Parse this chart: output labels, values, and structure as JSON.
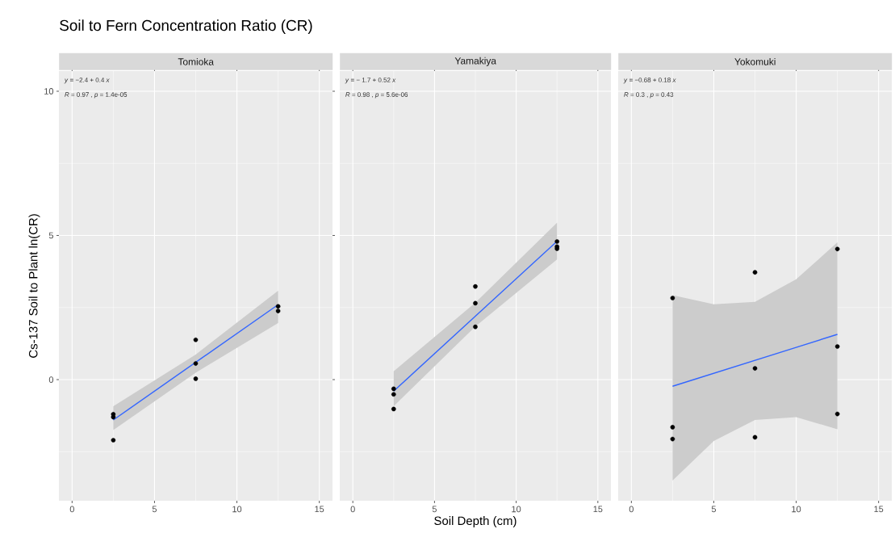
{
  "chart_data": [
    {
      "type": "scatter",
      "title": "Soil to Fern Concentration Ratio (CR)",
      "subtitle": "Tomioka",
      "ylabel": "Cs-137 Soil to Plant ln(CR)",
      "xlim": [
        -0.8,
        15.8
      ],
      "ylim": [
        -4.2,
        10.7
      ],
      "xticks": [
        0,
        5,
        10,
        15
      ],
      "yticks": [
        0,
        5,
        10
      ],
      "grid": true,
      "annotations": [
        "*y* = −2.4 + 0.4 *x*",
        "*R* = 0.97 , *p* = 1.4e-05"
      ],
      "series": [
        {
          "marker": "circle",
          "color": "#000000",
          "x": [
            2.5,
            2.5,
            2.5,
            7.5,
            7.5,
            7.5,
            12.5,
            12.5
          ],
          "values": [
            -1.2,
            -1.3,
            -2.1,
            1.38,
            0.56,
            0.03,
            2.54,
            2.38
          ]
        },
        {
          "type": "line",
          "marker": "none",
          "color": "#3366ff",
          "x": [
            2.5,
            7.5,
            12.5
          ],
          "values": [
            -1.4,
            0.6,
            2.6
          ],
          "lower": [
            -1.75,
            0.24,
            1.96
          ],
          "upper": [
            -0.92,
            0.87,
            3.08
          ]
        }
      ]
    },
    {
      "type": "scatter",
      "subtitle": "Yamakiya",
      "xlabel": "Soil Depth (cm)",
      "xlim": [
        -0.8,
        15.8
      ],
      "ylim": [
        -4.2,
        10.7
      ],
      "xticks": [
        0,
        5,
        10,
        15
      ],
      "yticks": [
        0,
        5,
        10
      ],
      "grid": true,
      "tick_labels": "x",
      "annotations": [
        "*y* = − 1.7 + 0.52 *x*",
        "*R* = 0.98 , *p* = 5.6e-06"
      ],
      "series": [
        {
          "marker": "circle",
          "color": "#000000",
          "x": [
            2.5,
            2.5,
            2.5,
            7.5,
            7.5,
            7.5,
            12.5,
            12.5,
            12.5
          ],
          "values": [
            -0.32,
            -0.51,
            -1.02,
            3.23,
            2.65,
            1.83,
            4.79,
            4.61,
            4.54
          ]
        },
        {
          "type": "line",
          "marker": "none",
          "color": "#3366ff",
          "x": [
            2.5,
            7.5,
            12.5
          ],
          "values": [
            -0.4,
            2.2,
            4.8
          ],
          "lower": [
            -0.92,
            1.84,
            4.17
          ],
          "upper": [
            0.29,
            2.67,
            5.44
          ]
        }
      ]
    },
    {
      "type": "scatter",
      "subtitle": "Yokomuki",
      "xlim": [
        -0.8,
        15.8
      ],
      "ylim": [
        -4.2,
        10.7
      ],
      "xticks": [
        0,
        5,
        10,
        15
      ],
      "yticks": [
        0,
        5,
        10
      ],
      "grid": true,
      "tick_labels": "x",
      "annotations": [
        "*y* = −0.68 + 0.18 *x*",
        "*R* = 0.3 , *p* = 0.43"
      ],
      "series": [
        {
          "marker": "circle",
          "color": "#000000",
          "x": [
            2.5,
            2.5,
            2.5,
            7.5,
            7.5,
            7.5,
            12.5,
            12.5,
            12.5
          ],
          "values": [
            2.83,
            -1.65,
            -2.06,
            3.72,
            0.39,
            -2.0,
            4.53,
            1.15,
            -1.19
          ]
        },
        {
          "type": "line",
          "marker": "none",
          "color": "#3366ff",
          "x": [
            2.5,
            5,
            7.5,
            10,
            12.5
          ],
          "values": [
            -0.23,
            0.22,
            0.67,
            1.12,
            1.57
          ],
          "lower": [
            -3.5,
            -2.13,
            -1.4,
            -1.3,
            -1.72
          ],
          "upper": [
            2.93,
            2.61,
            2.7,
            3.48,
            4.76
          ]
        }
      ]
    }
  ]
}
